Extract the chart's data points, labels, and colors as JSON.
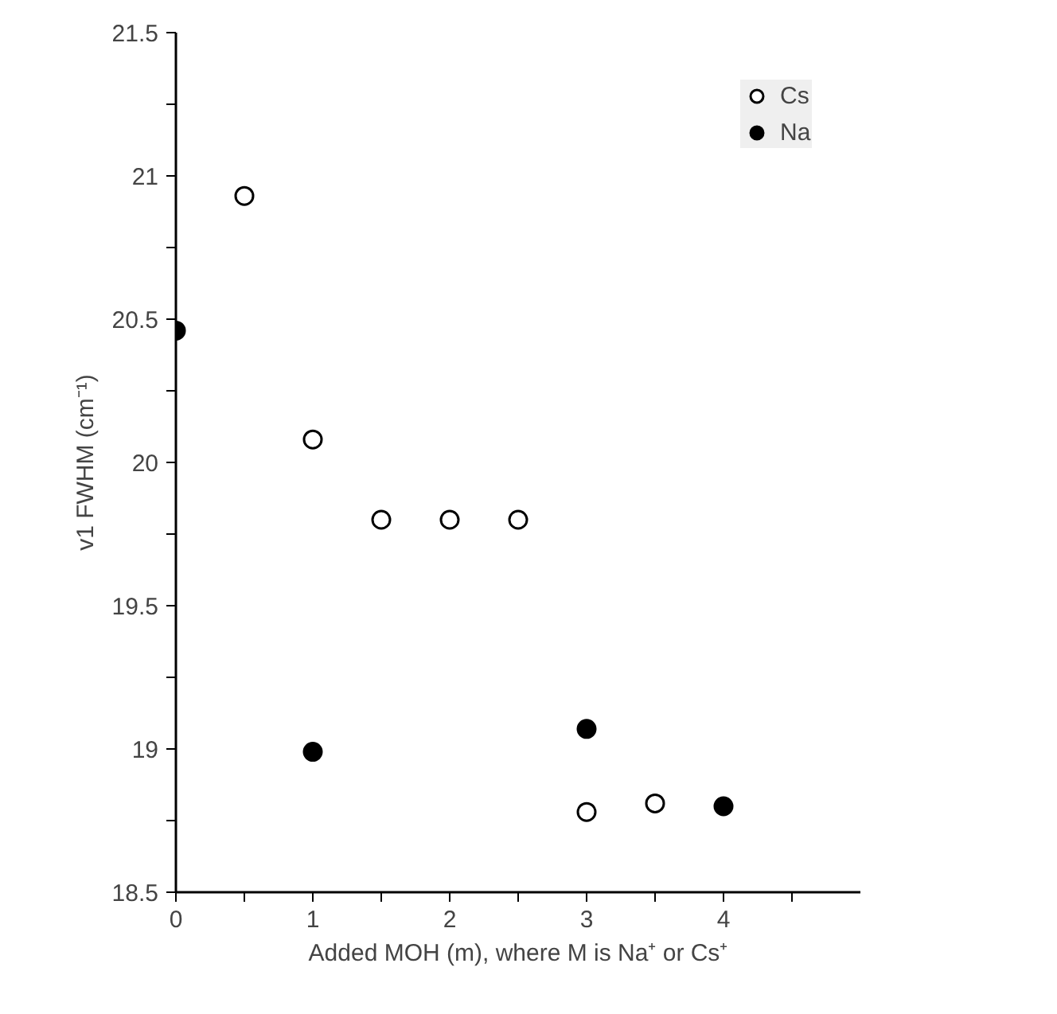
{
  "chart_data": {
    "type": "scatter",
    "xlabel": "Added MOH (m), where M is Na⁺ or Cs⁺",
    "ylabel": "v1 FWHM (cm⁻¹)",
    "xlim": [
      0,
      5
    ],
    "ylim": [
      18.5,
      21.5
    ],
    "xticks": [
      0,
      {
        "value": 0.5,
        "label": null
      },
      1,
      {
        "value": 1.5,
        "label": null
      },
      2,
      {
        "value": 2.5,
        "label": null
      },
      3,
      {
        "value": 3.5,
        "label": null
      },
      4,
      {
        "value": 4.5,
        "label": null
      }
    ],
    "yticks": [
      18.5,
      {
        "value": 18.75,
        "label": null
      },
      19,
      {
        "value": 19.25,
        "label": null
      },
      19.5,
      {
        "value": 19.75,
        "label": null
      },
      20,
      {
        "value": 20.25,
        "label": null
      },
      20.5,
      {
        "value": 20.75,
        "label": null
      },
      21,
      {
        "value": 21.25,
        "label": null
      },
      21.5
    ],
    "grid": false,
    "legend": "top right",
    "series": [
      {
        "name": "Cs",
        "color": "#ffffff",
        "marker": "circle",
        "x": [
          0.5,
          1,
          1.5,
          2,
          2.5,
          3,
          3.5
        ],
        "values": [
          20.93,
          20.08,
          19.8,
          19.8,
          19.8,
          18.78,
          18.81
        ]
      },
      {
        "name": "Na",
        "color": "#000000",
        "marker": "circle",
        "x": [
          0,
          1,
          3,
          4
        ],
        "values": [
          20.46,
          18.99,
          19.07,
          18.8
        ]
      }
    ]
  }
}
